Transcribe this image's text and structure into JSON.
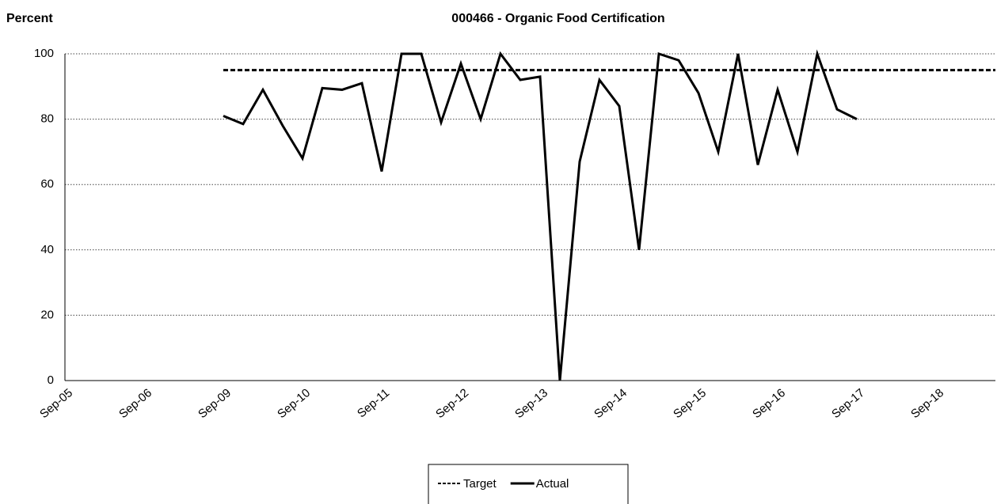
{
  "chart_data": {
    "type": "line",
    "title": "000466 - Organic Food Certification",
    "y_label": "Percent",
    "categories": [
      "Sep-05",
      null,
      null,
      null,
      "Sep-06",
      null,
      null,
      null,
      "Sep-09",
      null,
      null,
      null,
      "Sep-10",
      null,
      null,
      null,
      "Sep-11",
      null,
      null,
      null,
      "Sep-12",
      null,
      null,
      null,
      "Sep-13",
      null,
      null,
      null,
      "Sep-14",
      null,
      null,
      null,
      "Sep-15",
      null,
      null,
      null,
      "Sep-16",
      null,
      null,
      null,
      "Sep-17",
      null,
      null,
      null,
      "Sep-18",
      null,
      null,
      null
    ],
    "series": [
      {
        "name": "Target",
        "color": "#000000",
        "dashed": true,
        "values": [
          null,
          null,
          null,
          null,
          null,
          null,
          null,
          null,
          95,
          95,
          95,
          95,
          95,
          95,
          95,
          95,
          95,
          95,
          95,
          95,
          95,
          95,
          95,
          95,
          95,
          95,
          95,
          95,
          95,
          95,
          95,
          95,
          95,
          95,
          95,
          95,
          95,
          95,
          95,
          95,
          95,
          95,
          95,
          95,
          95,
          95,
          95,
          95
        ]
      },
      {
        "name": "Actual",
        "color": "#000000",
        "dashed": false,
        "values": [
          null,
          null,
          null,
          null,
          null,
          null,
          null,
          null,
          81,
          78.5,
          89,
          78,
          68,
          89.5,
          89,
          91,
          64,
          100,
          100,
          79,
          97,
          80,
          100,
          92,
          93,
          0,
          67,
          92,
          84,
          40,
          100,
          98,
          88,
          70,
          100,
          66,
          89,
          70,
          100,
          83,
          80,
          null,
          null,
          null,
          null,
          null,
          null,
          null
        ]
      }
    ],
    "ylim": [
      0,
      100
    ],
    "yticks": [
      0,
      20,
      40,
      60,
      80,
      100
    ],
    "grid": true,
    "legend": "bottom"
  }
}
